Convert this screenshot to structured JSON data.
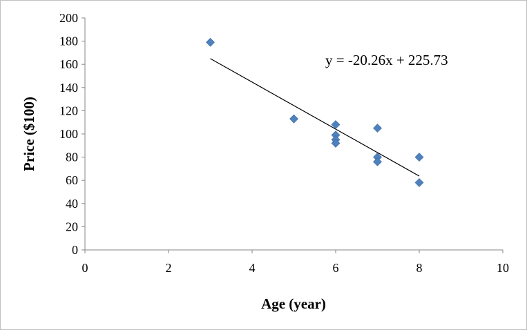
{
  "chart_data": {
    "type": "scatter",
    "xlabel": "Age (year)",
    "ylabel": "Price ($100)",
    "xlim": [
      0,
      10
    ],
    "ylim": [
      0,
      200
    ],
    "x_ticks": [
      0,
      2,
      4,
      6,
      8,
      10
    ],
    "y_ticks": [
      0,
      20,
      40,
      60,
      80,
      100,
      120,
      140,
      160,
      180,
      200
    ],
    "grid": false,
    "legend": "none",
    "marker": "diamond",
    "marker_color": "#4f81bd",
    "series": [
      {
        "x": [
          3,
          5,
          6,
          6,
          6,
          6,
          7,
          7,
          7,
          8,
          8
        ],
        "y": [
          179,
          113,
          108,
          99,
          95,
          92,
          105,
          80,
          76,
          80,
          58
        ]
      }
    ],
    "trendline": {
      "type": "linear",
      "slope": -20.26,
      "intercept": 225.73,
      "x_range": [
        3,
        8
      ],
      "color": "#000000",
      "equation_label": "y = -20.26x + 225.73"
    }
  }
}
